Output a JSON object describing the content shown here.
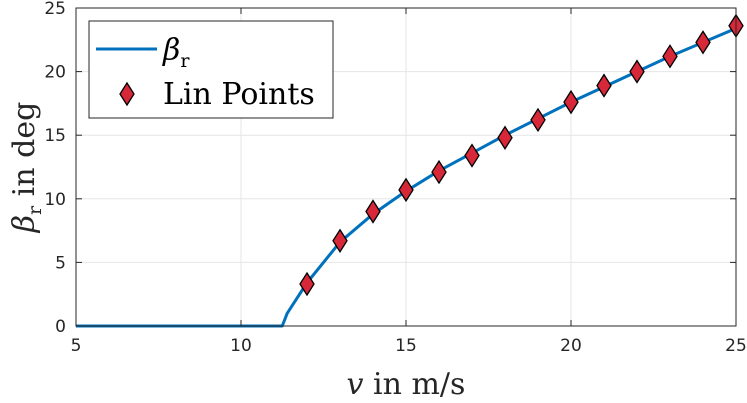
{
  "chart_data": {
    "type": "line",
    "xlabel": "v in m/s",
    "xlabel_var": "v",
    "xlabel_rest": " in m/s",
    "ylabel": "β_r in deg",
    "ylabel_sym": "β",
    "ylabel_sub": "r",
    "ylabel_rest": " in deg",
    "xlim": [
      5,
      25
    ],
    "ylim": [
      0,
      25
    ],
    "xticks": [
      5,
      10,
      15,
      20,
      25
    ],
    "yticks": [
      0,
      5,
      10,
      15,
      20,
      25
    ],
    "xtick_labels": [
      "5",
      "10",
      "15",
      "20",
      "25"
    ],
    "ytick_labels": [
      "0",
      "5",
      "10",
      "15",
      "20",
      "25"
    ],
    "grid": true,
    "legend_position": "top-left",
    "series": [
      {
        "name": "β_r",
        "name_sym": "β",
        "name_sub": "r",
        "kind": "line",
        "color": "#0072BD",
        "x": [
          5,
          11.25,
          11.4,
          12,
          13,
          14,
          15,
          16,
          17,
          18,
          19,
          20,
          21,
          22,
          23,
          24,
          25
        ],
        "y": [
          0,
          0,
          1.0,
          3.4,
          6.6,
          8.8,
          10.6,
          12.2,
          13.6,
          15.0,
          16.3,
          17.6,
          18.8,
          20.0,
          21.2,
          22.3,
          23.4
        ]
      },
      {
        "name": "Lin Points",
        "kind": "scatter",
        "marker": "diamond",
        "color": "#D62839",
        "edgecolor": "#000000",
        "x": [
          12,
          13,
          14,
          15,
          16,
          17,
          18,
          19,
          20,
          21,
          22,
          23,
          24,
          25
        ],
        "y": [
          3.3,
          6.7,
          9.0,
          10.7,
          12.1,
          13.4,
          14.8,
          16.2,
          17.6,
          18.9,
          20.0,
          21.2,
          22.3,
          23.6
        ]
      }
    ]
  }
}
